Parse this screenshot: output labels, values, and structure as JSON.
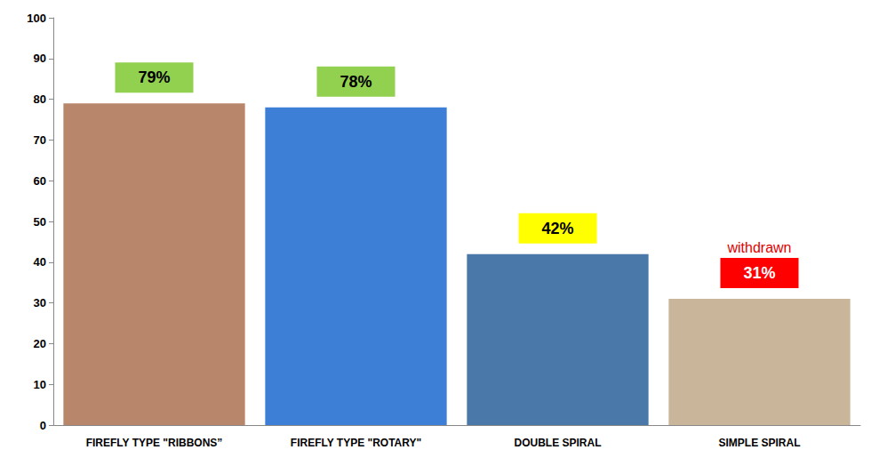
{
  "chart_data": {
    "type": "bar",
    "categories": [
      "FIREFLY TYPE \"RIBBONS”",
      "FIREFLY TYPE \"ROTARY\"",
      "DOUBLE SPIRAL",
      "SIMPLE SPIRAL"
    ],
    "values": [
      79,
      78,
      42,
      31
    ],
    "value_labels": [
      "79%",
      "78%",
      "42%",
      "31%"
    ],
    "colors": [
      "#b8866a",
      "#3d7fd6",
      "#4a78a8",
      "#c9b59a"
    ],
    "ylim": [
      0,
      100
    ],
    "yticks": [
      0,
      10,
      20,
      30,
      40,
      50,
      60,
      70,
      80,
      90,
      100
    ],
    "grid": false,
    "data_labels": true,
    "annotations": [
      {
        "text": "withdrawn",
        "category": "SIMPLE SPIRAL"
      }
    ]
  }
}
